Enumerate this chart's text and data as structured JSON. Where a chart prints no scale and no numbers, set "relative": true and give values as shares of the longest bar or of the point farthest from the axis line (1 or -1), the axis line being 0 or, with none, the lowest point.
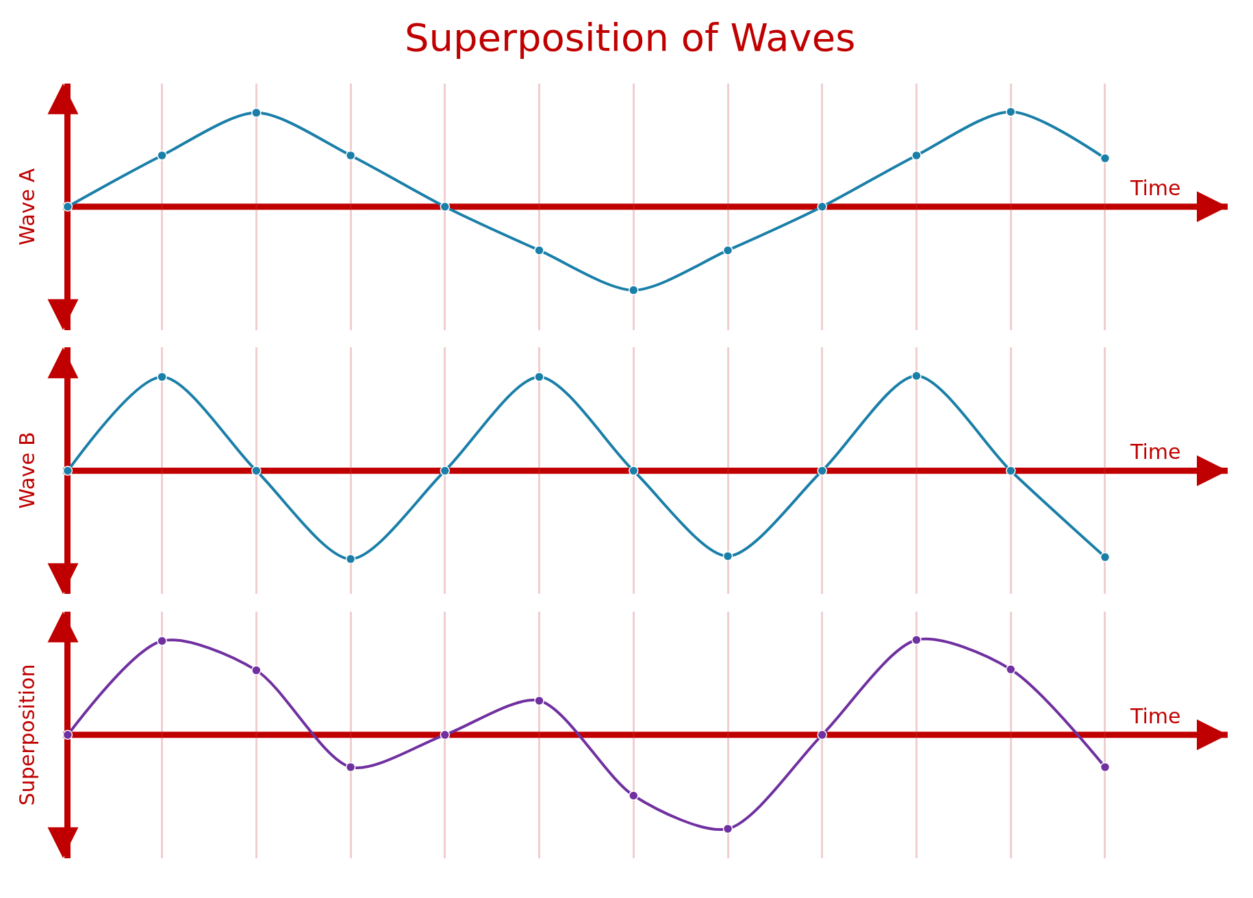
{
  "chart_data": [
    {
      "type": "line",
      "title": "Superposition of Waves",
      "xlabel": "Time",
      "ylabel": "Wave A",
      "relative": true,
      "grid": "x",
      "ref_lines": [
        {
          "axis": "y",
          "value": 0,
          "color": "#c00000"
        }
      ],
      "marker": "circle",
      "line_style": "solid",
      "categories": [
        null,
        null,
        null,
        null,
        null,
        null,
        null,
        null,
        null,
        null,
        null,
        null
      ],
      "series": [
        {
          "color": "#1a7fa8",
          "values": [
            0,
            0.54,
            0.99,
            0.54,
            0,
            -0.46,
            -0.88,
            -0.46,
            0,
            0.54,
            1,
            0.51
          ]
        }
      ]
    },
    {
      "type": "line",
      "xlabel": "Time",
      "ylabel": "Wave B",
      "relative": true,
      "grid": "x",
      "ref_lines": [
        {
          "axis": "y",
          "value": 0,
          "color": "#c00000"
        }
      ],
      "marker": "circle",
      "line_style": "solid",
      "categories": [
        null,
        null,
        null,
        null,
        null,
        null,
        null,
        null,
        null,
        null,
        null,
        null
      ],
      "series": [
        {
          "color": "#1a7fa8",
          "values": [
            0,
            0.99,
            0,
            -0.93,
            0,
            0.99,
            0,
            -0.9,
            0,
            1,
            0,
            -0.91
          ]
        }
      ]
    },
    {
      "type": "line",
      "xlabel": "Time",
      "ylabel": "Superposition",
      "relative": true,
      "grid": "x",
      "ref_lines": [
        {
          "axis": "y",
          "value": 0,
          "color": "#c00000"
        }
      ],
      "marker": "circle",
      "line_style": "solid",
      "categories": [
        null,
        null,
        null,
        null,
        null,
        null,
        null,
        null,
        null,
        null,
        null,
        null
      ],
      "series": [
        {
          "color": "#7030a0",
          "values": [
            0,
            0.99,
            0.68,
            -0.34,
            0,
            0.36,
            -0.64,
            -0.99,
            0,
            1,
            0.69,
            -0.34
          ]
        }
      ]
    }
  ]
}
